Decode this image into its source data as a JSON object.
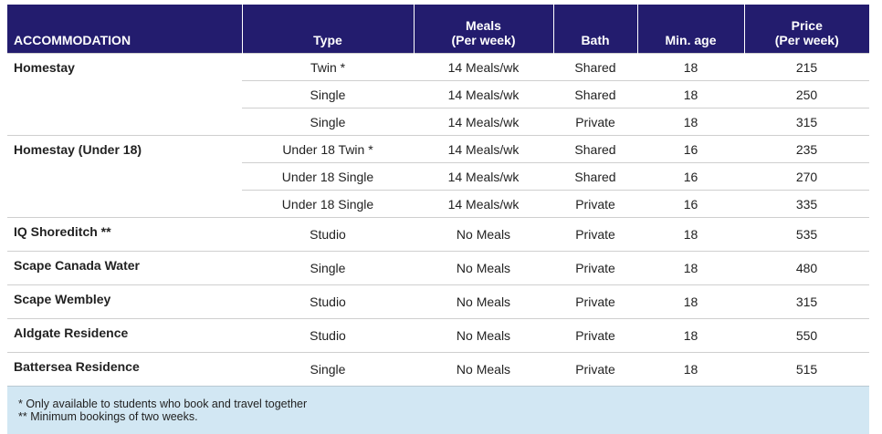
{
  "table": {
    "header": [
      [
        "ACCOMMODATION"
      ],
      [
        "Type"
      ],
      [
        "Meals",
        "(Per week)"
      ],
      [
        "Bath"
      ],
      [
        "Min. age"
      ],
      [
        "Price",
        "(Per week)"
      ]
    ],
    "groups": [
      {
        "name": "Homestay",
        "rows": [
          [
            "Twin *",
            "14 Meals/wk",
            "Shared",
            18,
            215
          ],
          [
            "Single",
            "14 Meals/wk",
            "Shared",
            18,
            250
          ],
          [
            "Single",
            "14 Meals/wk",
            "Private",
            18,
            315
          ]
        ]
      },
      {
        "name": "Homestay (Under 18)",
        "rows": [
          [
            "Under 18 Twin *",
            "14 Meals/wk",
            "Shared",
            16,
            235
          ],
          [
            "Under 18 Single",
            "14 Meals/wk",
            "Shared",
            16,
            270
          ],
          [
            "Under 18 Single",
            "14 Meals/wk",
            "Private",
            16,
            335
          ]
        ]
      },
      {
        "name": "IQ Shoreditch **",
        "rows": [
          [
            "Studio",
            "No Meals",
            "Private",
            18,
            535
          ]
        ]
      },
      {
        "name": "Scape Canada Water",
        "rows": [
          [
            "Single",
            "No Meals",
            "Private",
            18,
            480
          ]
        ]
      },
      {
        "name": "Scape Wembley",
        "rows": [
          [
            "Studio",
            "No Meals",
            "Private",
            18,
            315
          ]
        ]
      },
      {
        "name": "Aldgate Residence",
        "rows": [
          [
            "Studio",
            "No Meals",
            "Private",
            18,
            550
          ]
        ]
      },
      {
        "name": "Battersea Residence",
        "rows": [
          [
            "Single",
            "No Meals",
            "Private",
            18,
            515
          ]
        ]
      }
    ],
    "footnotes": [
      "* Only available to students who book and travel together",
      "** Minimum bookings of two weeks."
    ]
  }
}
